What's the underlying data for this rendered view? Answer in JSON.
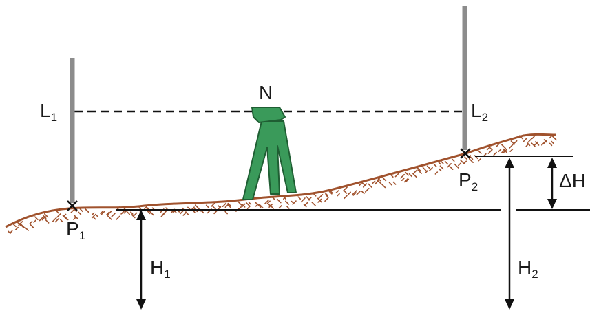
{
  "labels": {
    "instrument": "N",
    "staff_left_main": "L",
    "staff_left_sub": "1",
    "staff_right_main": "L",
    "staff_right_sub": "2",
    "point_left_main": "P",
    "point_left_sub": "1",
    "point_right_main": "P",
    "point_right_sub": "2",
    "height_left_main": "H",
    "height_left_sub": "1",
    "height_right_main": "H",
    "height_right_sub": "2",
    "difference": "ΔH"
  },
  "colors": {
    "terrain": "#a0522d",
    "staff": "#8c8c8c",
    "tripod": "#3a9a5a",
    "tripod_outline": "#1f5e33",
    "line": "#111111"
  }
}
